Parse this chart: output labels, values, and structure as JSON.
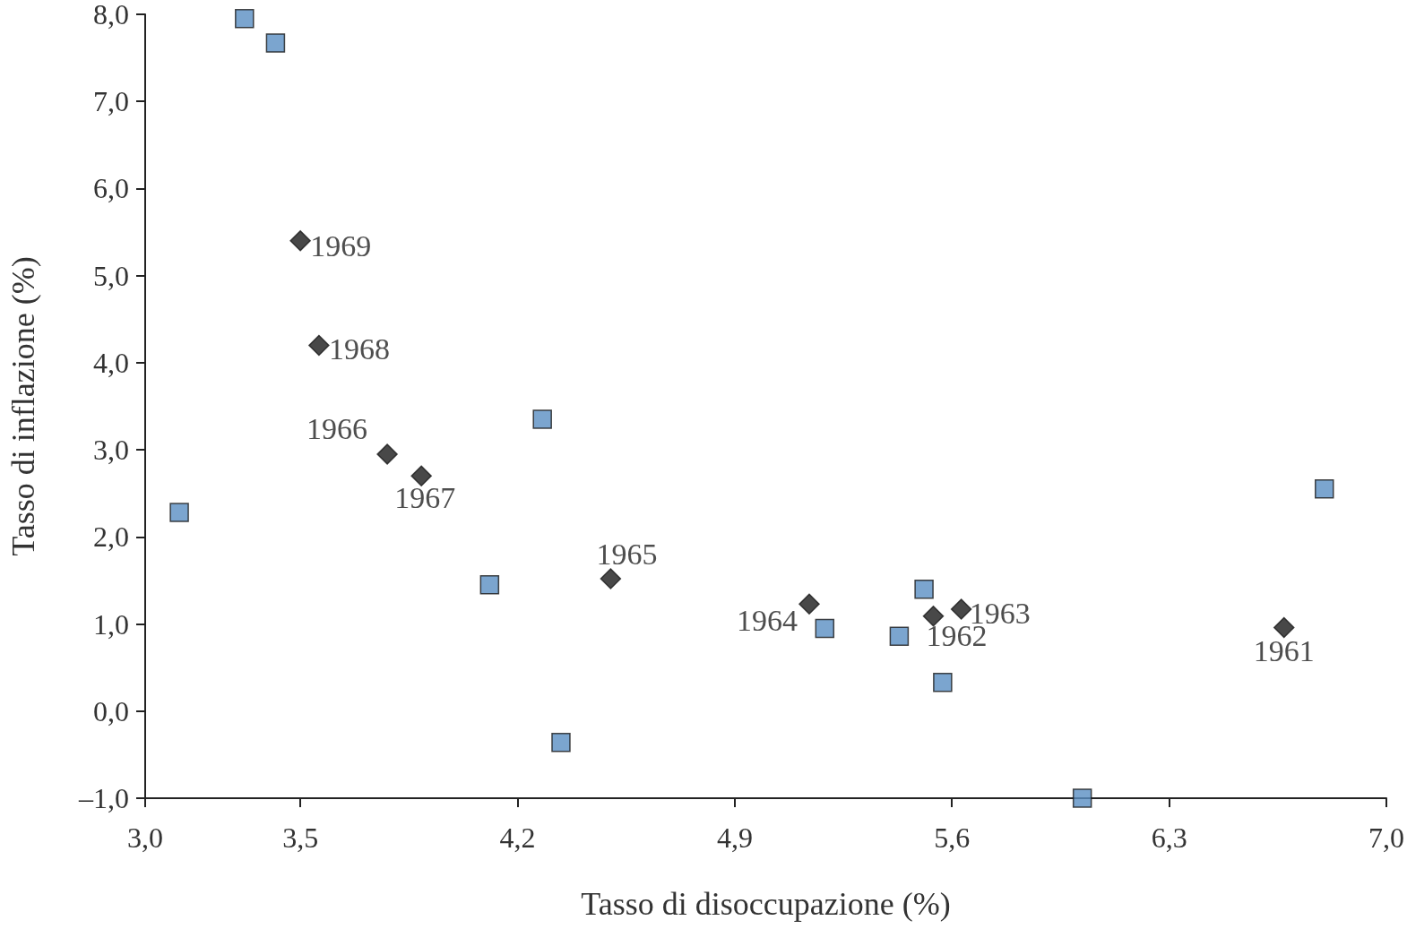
{
  "chart_data": {
    "type": "scatter",
    "xlabel": "Tasso di disoccupazione (%)",
    "ylabel": "Tasso di inflazione (%)",
    "xlim": [
      3.0,
      7.0
    ],
    "ylim": [
      -1.0,
      8.0
    ],
    "xticks": [
      {
        "value": 3.0,
        "label": "3,0"
      },
      {
        "value": 3.5,
        "label": "3,5"
      },
      {
        "value": 4.2,
        "label": "4,2"
      },
      {
        "value": 4.9,
        "label": "4,9"
      },
      {
        "value": 5.6,
        "label": "5,6"
      },
      {
        "value": 6.3,
        "label": "6,3"
      },
      {
        "value": 7.0,
        "label": "7,0"
      }
    ],
    "yticks": [
      {
        "value": -1.0,
        "label": "–1,0"
      },
      {
        "value": 0.0,
        "label": "0,0"
      },
      {
        "value": 1.0,
        "label": "1,0"
      },
      {
        "value": 2.0,
        "label": "2,0"
      },
      {
        "value": 3.0,
        "label": "3,0"
      },
      {
        "value": 4.0,
        "label": "4,0"
      },
      {
        "value": 5.0,
        "label": "5,0"
      },
      {
        "value": 6.0,
        "label": "6,0"
      },
      {
        "value": 7.0,
        "label": "7,0"
      },
      {
        "value": 8.0,
        "label": "8,0"
      }
    ],
    "grid": false,
    "series": [
      {
        "color": "#5a8fc3",
        "marker": "square",
        "x": [
          3.32,
          3.42,
          3.11,
          4.28,
          4.11,
          4.34,
          5.19,
          5.43,
          5.51,
          5.57,
          6.02,
          6.8
        ],
        "values": [
          7.95,
          7.67,
          2.28,
          3.35,
          1.45,
          -0.36,
          0.95,
          0.86,
          1.4,
          0.33,
          -1.0,
          2.55
        ]
      },
      {
        "color": "#1a1a1a",
        "marker": "diamond",
        "x": [
          3.5,
          3.56,
          3.78,
          3.89,
          4.5,
          5.14,
          5.54,
          5.63,
          6.67
        ],
        "values": [
          5.4,
          4.2,
          2.95,
          2.7,
          1.52,
          1.23,
          1.09,
          1.17,
          0.96
        ]
      }
    ],
    "annotations": [
      {
        "text": "1969",
        "x": 3.5,
        "y": 5.4
      },
      {
        "text": "1968",
        "x": 3.56,
        "y": 4.2
      },
      {
        "text": "1966",
        "x": 3.78,
        "y": 2.95
      },
      {
        "text": "1967",
        "x": 3.89,
        "y": 2.7
      },
      {
        "text": "1965",
        "x": 4.5,
        "y": 1.52
      },
      {
        "text": "1964",
        "x": 5.14,
        "y": 1.23
      },
      {
        "text": "1962",
        "x": 5.54,
        "y": 1.09
      },
      {
        "text": "1963",
        "x": 5.63,
        "y": 1.17
      },
      {
        "text": "1961",
        "x": 6.67,
        "y": 0.96
      }
    ]
  }
}
